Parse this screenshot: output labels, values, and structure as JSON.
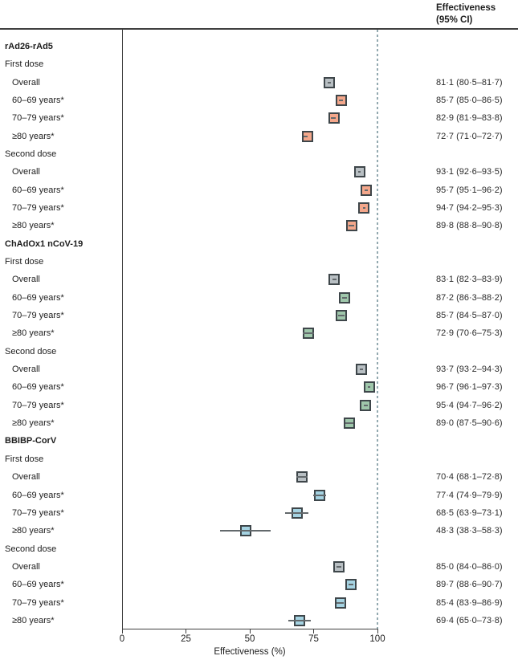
{
  "header": {
    "line1": "Effectiveness",
    "line2": "(95% CI)"
  },
  "colors": {
    "gray": "#b8bfc3",
    "salmon": "#f4a78b",
    "green": "#9fc7ab",
    "blue": "#a5d3e2",
    "border": "#3e464a",
    "ci_line": "#63696c",
    "axis": "#3f3f3f",
    "ref_line": "#93a9b0"
  },
  "chart_data": {
    "type": "scatter",
    "variant": "forest-plot",
    "xlabel": "Effectiveness (%)",
    "xlim": [
      0,
      100
    ],
    "xticks": [
      0,
      25,
      75,
      50,
      100
    ],
    "xticks_ordered": [
      0,
      25,
      50,
      75,
      100
    ],
    "reference_line_x": 100,
    "legend": "none",
    "rows": [
      {
        "kind": "group",
        "label": "rAd26-rAd5"
      },
      {
        "kind": "sub",
        "label": "First dose"
      },
      {
        "kind": "item",
        "label": "Overall",
        "color": "gray",
        "est": 81.1,
        "lo": 80.5,
        "hi": 81.7,
        "ci_text": "81·1 (80·5–81·7)"
      },
      {
        "kind": "item",
        "label": "60–69 years*",
        "color": "salmon",
        "est": 85.7,
        "lo": 85.0,
        "hi": 86.5,
        "ci_text": "85·7 (85·0–86·5)"
      },
      {
        "kind": "item",
        "label": "70–79 years*",
        "color": "salmon",
        "est": 82.9,
        "lo": 81.9,
        "hi": 83.8,
        "ci_text": "82·9 (81·9–83·8)"
      },
      {
        "kind": "item",
        "label": "≥80 years*",
        "color": "salmon",
        "est": 72.7,
        "lo": 71.0,
        "hi": 72.7,
        "ci_text": "72·7 (71·0–72·7)"
      },
      {
        "kind": "sub",
        "label": "Second dose"
      },
      {
        "kind": "item",
        "label": "Overall",
        "color": "gray",
        "est": 93.1,
        "lo": 92.6,
        "hi": 93.5,
        "ci_text": "93·1 (92·6–93·5)"
      },
      {
        "kind": "item",
        "label": "60–69 years*",
        "color": "salmon",
        "est": 95.7,
        "lo": 95.1,
        "hi": 96.2,
        "ci_text": "95·7 (95·1–96·2)"
      },
      {
        "kind": "item",
        "label": "70–79 years*",
        "color": "salmon",
        "est": 94.7,
        "lo": 94.2,
        "hi": 95.3,
        "ci_text": "94·7 (94·2–95·3)"
      },
      {
        "kind": "item",
        "label": "≥80 years*",
        "color": "salmon",
        "est": 89.8,
        "lo": 88.8,
        "hi": 90.8,
        "ci_text": "89·8 (88·8–90·8)"
      },
      {
        "kind": "group",
        "label": "ChAdOx1 nCoV-19"
      },
      {
        "kind": "sub",
        "label": "First dose"
      },
      {
        "kind": "item",
        "label": "Overall",
        "color": "gray",
        "est": 83.1,
        "lo": 82.3,
        "hi": 83.9,
        "ci_text": "83·1 (82·3–83·9)"
      },
      {
        "kind": "item",
        "label": "60–69 years*",
        "color": "green",
        "est": 87.2,
        "lo": 86.3,
        "hi": 88.2,
        "ci_text": "87·2 (86·3–88·2)"
      },
      {
        "kind": "item",
        "label": "70–79 years*",
        "color": "green",
        "est": 85.7,
        "lo": 84.5,
        "hi": 87.0,
        "ci_text": "85·7 (84·5–87·0)"
      },
      {
        "kind": "item",
        "label": "≥80 years*",
        "color": "green",
        "est": 72.9,
        "lo": 70.6,
        "hi": 75.3,
        "ci_text": "72·9 (70·6–75·3)"
      },
      {
        "kind": "sub",
        "label": "Second dose"
      },
      {
        "kind": "item",
        "label": "Overall",
        "color": "gray",
        "est": 93.7,
        "lo": 93.2,
        "hi": 94.3,
        "ci_text": "93·7 (93·2–94·3)"
      },
      {
        "kind": "item",
        "label": "60–69 years*",
        "color": "green",
        "est": 96.7,
        "lo": 96.1,
        "hi": 97.3,
        "ci_text": "96·7 (96·1–97·3)"
      },
      {
        "kind": "item",
        "label": "70–79 years*",
        "color": "green",
        "est": 95.4,
        "lo": 94.7,
        "hi": 96.2,
        "ci_text": "95·4 (94·7–96·2)"
      },
      {
        "kind": "item",
        "label": "≥80 years*",
        "color": "green",
        "est": 89.0,
        "lo": 87.5,
        "hi": 90.6,
        "ci_text": "89·0 (87·5–90·6)"
      },
      {
        "kind": "group",
        "label": "BBIBP-CorV"
      },
      {
        "kind": "sub",
        "label": "First dose"
      },
      {
        "kind": "item",
        "label": "Overall",
        "color": "gray",
        "est": 70.4,
        "lo": 68.1,
        "hi": 72.8,
        "ci_text": "70·4 (68·1–72·8)"
      },
      {
        "kind": "item",
        "label": "60–69 years*",
        "color": "blue",
        "est": 77.4,
        "lo": 74.9,
        "hi": 79.9,
        "ci_text": "77·4 (74·9–79·9)"
      },
      {
        "kind": "item",
        "label": "70–79 years*",
        "color": "blue",
        "est": 68.5,
        "lo": 63.9,
        "hi": 73.1,
        "ci_text": "68·5 (63·9–73·1)"
      },
      {
        "kind": "item",
        "label": "≥80 years*",
        "color": "blue",
        "est": 48.3,
        "lo": 38.3,
        "hi": 58.3,
        "ci_text": "48·3 (38·3–58·3)"
      },
      {
        "kind": "sub",
        "label": "Second dose"
      },
      {
        "kind": "item",
        "label": "Overall",
        "color": "gray",
        "est": 85.0,
        "lo": 84.0,
        "hi": 86.0,
        "ci_text": "85·0 (84·0–86·0)"
      },
      {
        "kind": "item",
        "label": "60–69 years*",
        "color": "blue",
        "est": 89.7,
        "lo": 88.6,
        "hi": 90.7,
        "ci_text": "89·7 (88·6–90·7)"
      },
      {
        "kind": "item",
        "label": "70–79 years*",
        "color": "blue",
        "est": 85.4,
        "lo": 83.9,
        "hi": 86.9,
        "ci_text": "85·4 (83·9–86·9)"
      },
      {
        "kind": "item",
        "label": "≥80 years*",
        "color": "blue",
        "est": 69.4,
        "lo": 65.0,
        "hi": 73.8,
        "ci_text": "69·4 (65·0–73·8)"
      }
    ]
  }
}
